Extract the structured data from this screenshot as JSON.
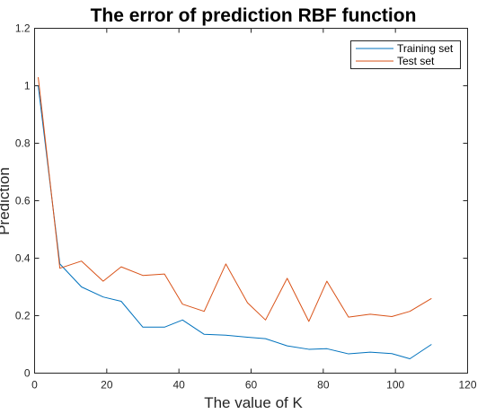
{
  "chart_data": {
    "type": "line",
    "title": "The error of prediction RBF function",
    "xlabel": "The value of K",
    "ylabel": "Prediction",
    "xlim": [
      0,
      120
    ],
    "ylim": [
      0,
      1.2
    ],
    "xticks": [
      0,
      20,
      40,
      60,
      80,
      100,
      120
    ],
    "yticks": [
      0,
      0.2,
      0.4,
      0.6,
      0.8,
      1,
      1.2
    ],
    "xtick_labels": [
      "0",
      "20",
      "40",
      "60",
      "80",
      "100",
      "120"
    ],
    "ytick_labels": [
      "0",
      "0.2",
      "0.4",
      "0.6",
      "0.8",
      "1",
      "1.2"
    ],
    "grid": false,
    "legend_position": "top-right",
    "x": [
      1,
      7,
      13,
      19,
      24,
      30,
      36,
      41,
      47,
      53,
      59,
      64,
      70,
      76,
      81,
      87,
      93,
      99,
      104,
      110
    ],
    "series": [
      {
        "name": "Training set",
        "color": "#0072BD",
        "values": [
          1.0,
          0.38,
          0.3,
          0.265,
          0.25,
          0.16,
          0.16,
          0.185,
          0.135,
          0.132,
          0.125,
          0.12,
          0.095,
          0.083,
          0.085,
          0.067,
          0.073,
          0.068,
          0.05,
          0.1
        ]
      },
      {
        "name": "Test set",
        "color": "#D95319",
        "values": [
          1.03,
          0.365,
          0.39,
          0.32,
          0.37,
          0.34,
          0.345,
          0.24,
          0.215,
          0.38,
          0.245,
          0.185,
          0.33,
          0.18,
          0.32,
          0.195,
          0.205,
          0.197,
          0.215,
          0.26
        ]
      }
    ]
  }
}
